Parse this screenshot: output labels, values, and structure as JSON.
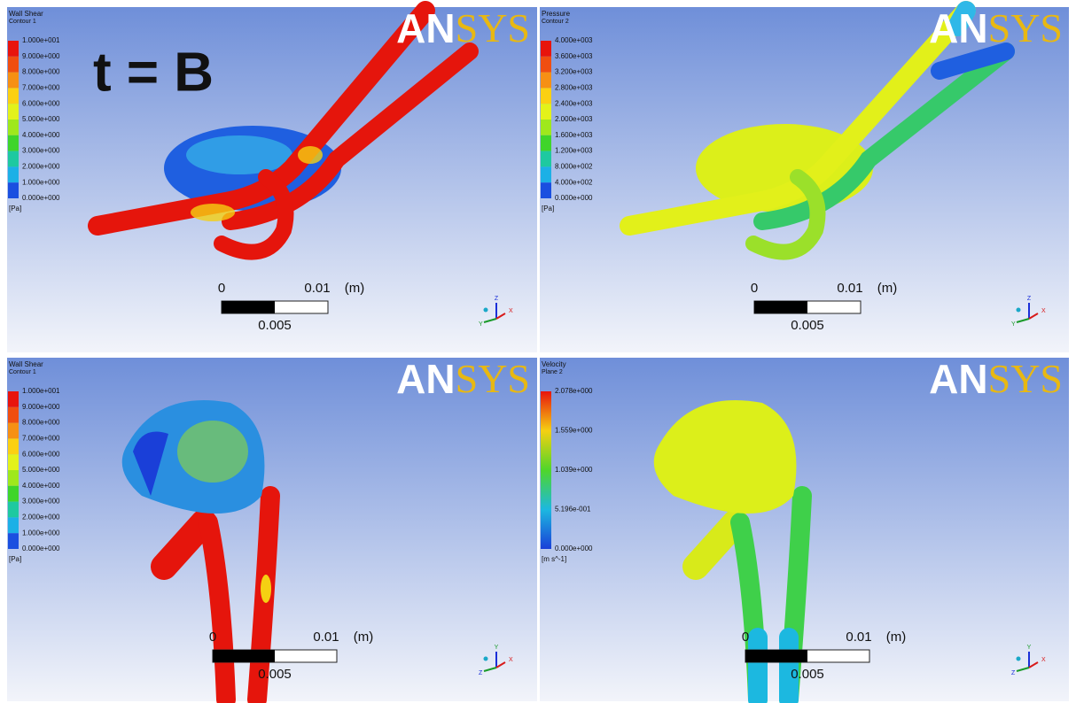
{
  "annotation": "t = B",
  "panels": [
    {
      "legend": {
        "title": "Wall Shear",
        "subtitle": "Contour 1",
        "unit": "[Pa]",
        "style": "bands",
        "labels": [
          "1.000e+001",
          "9.000e+000",
          "8.000e+000",
          "7.000e+000",
          "6.000e+000",
          "5.000e+000",
          "4.000e+000",
          "3.000e+000",
          "2.000e+000",
          "1.000e+000",
          "0.000e+000"
        ]
      },
      "logo": {
        "left": "AN",
        "right": "SYS"
      },
      "scale": {
        "start": "0",
        "end": "0.01",
        "unit": "(m)",
        "mid": "0.005"
      },
      "triad": [
        "Z",
        "X",
        "Y"
      ]
    },
    {
      "legend": {
        "title": "Pressure",
        "subtitle": "Contour 2",
        "unit": "[Pa]",
        "style": "bands",
        "labels": [
          "4.000e+003",
          "3.600e+003",
          "3.200e+003",
          "2.800e+003",
          "2.400e+003",
          "2.000e+003",
          "1.600e+003",
          "1.200e+003",
          "8.000e+002",
          "4.000e+002",
          "0.000e+000"
        ]
      },
      "logo": {
        "left": "AN",
        "right": "SYS"
      },
      "scale": {
        "start": "0",
        "end": "0.01",
        "unit": "(m)",
        "mid": "0.005"
      },
      "triad": [
        "Z",
        "X",
        "Y"
      ]
    },
    {
      "legend": {
        "title": "Wall Shear",
        "subtitle": "Contour 1",
        "unit": "[Pa]",
        "style": "bands",
        "labels": [
          "1.000e+001",
          "9.000e+000",
          "8.000e+000",
          "7.000e+000",
          "6.000e+000",
          "5.000e+000",
          "4.000e+000",
          "3.000e+000",
          "2.000e+000",
          "1.000e+000",
          "0.000e+000"
        ]
      },
      "logo": {
        "left": "AN",
        "right": "SYS"
      },
      "scale": {
        "start": "0",
        "end": "0.01",
        "unit": "(m)",
        "mid": "0.005"
      },
      "triad": [
        "Y",
        "X",
        "Z"
      ]
    },
    {
      "legend": {
        "title": "Velocity",
        "subtitle": "Plane 2",
        "unit": "[m s^-1]",
        "style": "smooth",
        "labels": [
          "2.078e+000",
          "1.559e+000",
          "1.039e+000",
          "5.196e-001",
          "0.000e+000"
        ]
      },
      "logo": {
        "left": "AN",
        "right": "SYS"
      },
      "scale": {
        "start": "0",
        "end": "0.01",
        "unit": "(m)",
        "mid": "0.005"
      },
      "triad": [
        "Y",
        "X",
        "Z"
      ]
    }
  ]
}
